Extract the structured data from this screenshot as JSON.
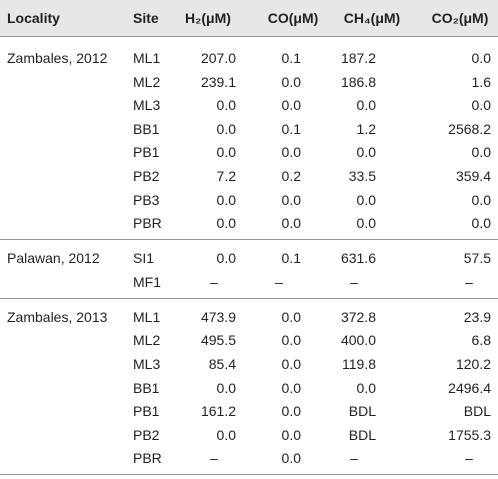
{
  "header": [
    "Locality",
    "Site",
    "H₂(μM)",
    "CO(μM)",
    "CH₄(μM)",
    "CO₂(μM)"
  ],
  "groups": [
    {
      "locality": "Zambales, 2012",
      "rows": [
        [
          "ML1",
          "207.0",
          "0.1",
          "187.2",
          "0.0"
        ],
        [
          "ML2",
          "239.1",
          "0.0",
          "186.8",
          "1.6"
        ],
        [
          "ML3",
          "0.0",
          "0.0",
          "0.0",
          "0.0"
        ],
        [
          "BB1",
          "0.0",
          "0.1",
          "1.2",
          "2568.2"
        ],
        [
          "PB1",
          "0.0",
          "0.0",
          "0.0",
          "0.0"
        ],
        [
          "PB2",
          "7.2",
          "0.2",
          "33.5",
          "359.4"
        ],
        [
          "PB3",
          "0.0",
          "0.0",
          "0.0",
          "0.0"
        ],
        [
          "PBR",
          "0.0",
          "0.0",
          "0.0",
          "0.0"
        ]
      ]
    },
    {
      "locality": "Palawan, 2012",
      "rows": [
        [
          "SI1",
          "0.0",
          "0.1",
          "631.6",
          "57.5"
        ],
        [
          "MF1",
          "–",
          "–",
          "–",
          "–"
        ]
      ]
    },
    {
      "locality": "Zambales, 2013",
      "rows": [
        [
          "ML1",
          "473.9",
          "0.0",
          "372.8",
          "23.9"
        ],
        [
          "ML2",
          "495.5",
          "0.0",
          "400.0",
          "6.8"
        ],
        [
          "ML3",
          "85.4",
          "0.0",
          "119.8",
          "120.2"
        ],
        [
          "BB1",
          "0.0",
          "0.0",
          "0.0",
          "2496.4"
        ],
        [
          "PB1",
          "161.2",
          "0.0",
          "BDL",
          "BDL"
        ],
        [
          "PB2",
          "0.0",
          "0.0",
          "BDL",
          "1755.3"
        ],
        [
          "PBR",
          "–",
          "0.0",
          "–",
          "–"
        ]
      ]
    }
  ]
}
